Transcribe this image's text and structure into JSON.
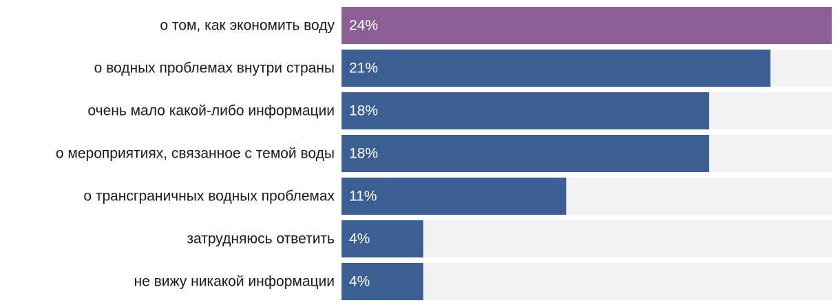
{
  "chart_data": {
    "type": "bar",
    "orientation": "horizontal",
    "categories": [
      "о том, как экономить воду",
      "о водных проблемах внутри страны",
      "очень мало какой-либо информации",
      "о мероприятиях, связанное с темой воды",
      "о трансграничных водных проблемах",
      "затрудняюсь ответить",
      "не вижу никакой информации"
    ],
    "values": [
      24,
      21,
      18,
      18,
      11,
      4,
      4
    ],
    "value_labels": [
      "24%",
      "21%",
      "18%",
      "18%",
      "11%",
      "4%",
      "4%"
    ],
    "xlim": [
      0,
      24
    ],
    "grid": false,
    "legend": "none",
    "highlight_index": 0
  },
  "colors": {
    "highlight_bar": "#8b5e96",
    "bar": "#3b5e93",
    "track": "#f2f2f2",
    "label_text": "#1a1a1a",
    "value_text": "#ffffff"
  }
}
